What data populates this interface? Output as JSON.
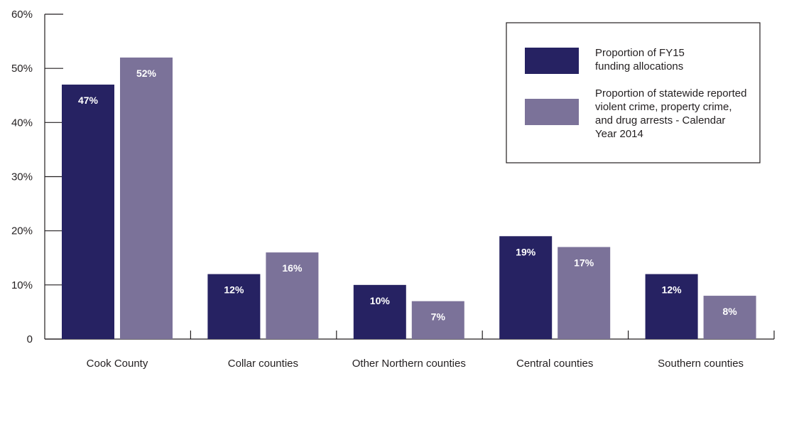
{
  "chart_data": {
    "type": "bar",
    "title": "",
    "xlabel": "",
    "ylabel": "",
    "ylim": [
      0,
      60
    ],
    "yticks": [
      0,
      10,
      20,
      30,
      40,
      50,
      60
    ],
    "ytick_labels": [
      "0",
      "10%",
      "20%",
      "30%",
      "40%",
      "50%",
      "60%"
    ],
    "categories": [
      "Cook County",
      "Collar counties",
      "Other Northern counties",
      "Central counties",
      "Southern counties"
    ],
    "series": [
      {
        "name": "Proportion of FY15 funding allocations",
        "legend_lines": [
          "Proportion of FY15",
          "funding allocations"
        ],
        "color": "#262262",
        "values": [
          47,
          12,
          10,
          19,
          12
        ],
        "labels": [
          "47%",
          "12%",
          "10%",
          "19%",
          "12%"
        ]
      },
      {
        "name": "Proportion of statewide reported violent crime, property crime, and drug arrests - Calendar Year 2014",
        "legend_lines": [
          "Proportion of statewide reported",
          "violent crime, property crime,",
          "and drug arrests - Calendar",
          "Year 2014"
        ],
        "color": "#7b7299",
        "values": [
          52,
          16,
          7,
          17,
          8
        ],
        "labels": [
          "52%",
          "16%",
          "7%",
          "17%",
          "8%"
        ]
      }
    ],
    "grid": false,
    "legend_position": "top-right"
  }
}
